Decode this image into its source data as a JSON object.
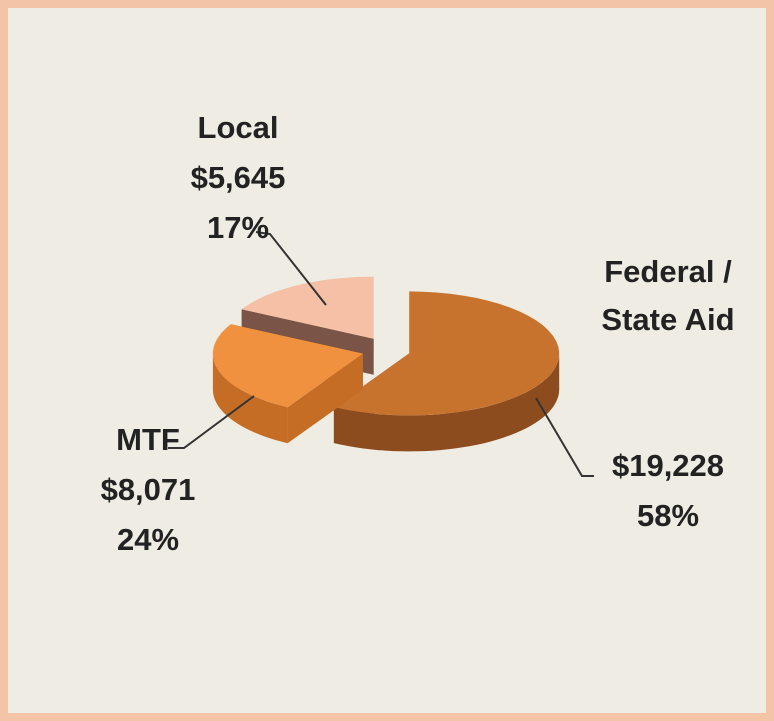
{
  "chart_data": {
    "type": "pie3d",
    "categories": [
      "Federal / State Aid",
      "MTF",
      "Local"
    ],
    "values": [
      19228,
      8071,
      5645
    ],
    "value_labels": [
      "$19,228",
      "$8,071",
      "$5,645"
    ],
    "percent_labels": [
      "58%",
      "24%",
      "17%"
    ],
    "colors": [
      "#c8732d",
      "#f0913f",
      "#f5c0a5"
    ],
    "side_colors": [
      "#8c4c1e",
      "#c56c25",
      "#7a5446"
    ]
  }
}
